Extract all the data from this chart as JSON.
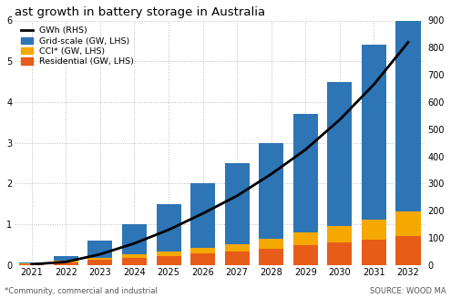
{
  "title": "ast growth in battery storage in Australia",
  "years": [
    2021,
    2022,
    2023,
    2024,
    2025,
    2026,
    2027,
    2028,
    2029,
    2030,
    2031,
    2032
  ],
  "residential": [
    0.03,
    0.07,
    0.13,
    0.18,
    0.22,
    0.28,
    0.33,
    0.4,
    0.48,
    0.55,
    0.62,
    0.72
  ],
  "cci": [
    0.01,
    0.03,
    0.05,
    0.08,
    0.11,
    0.15,
    0.18,
    0.25,
    0.32,
    0.4,
    0.5,
    0.6
  ],
  "grid_scale": [
    0.03,
    0.12,
    0.42,
    0.74,
    1.17,
    1.57,
    1.99,
    2.35,
    2.9,
    3.55,
    4.28,
    5.18
  ],
  "gwh_rhs": [
    3,
    12,
    40,
    80,
    130,
    190,
    255,
    335,
    425,
    535,
    665,
    820
  ],
  "gwh_rhs_max": 900,
  "lhs_max": 6,
  "lhs_ticks": [
    0,
    1,
    2,
    3,
    4,
    5,
    6
  ],
  "rhs_ticks": [
    0,
    100,
    200,
    300,
    400,
    500,
    600,
    700,
    800,
    900
  ],
  "color_residential": "#e85c1a",
  "color_cci": "#f5a800",
  "color_grid": "#2e75b6",
  "color_line": "#000000",
  "footnote": "*Community, commercial and industrial",
  "source": "SOURCE: WOOD MA",
  "legend_items": [
    "GWh (RHS)",
    "Grid-scale (GW, LHS)",
    "CCI* (GW, LHS)",
    "Residential (GW, LHS)"
  ]
}
